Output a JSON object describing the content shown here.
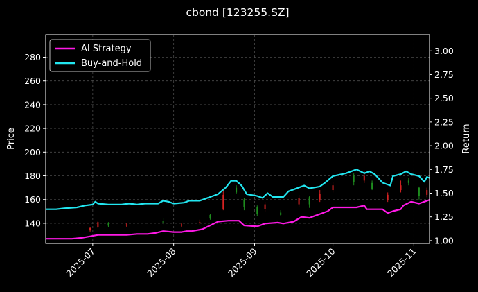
{
  "chart_data": {
    "type": "line",
    "title": "cbond [123255.SZ]",
    "ylabel_left": "Price",
    "ylabel_right": "Return",
    "x_ticks": [
      "2025-07",
      "2025-08",
      "2025-09",
      "2025-10",
      "2025-11"
    ],
    "y_left_ticks": [
      140,
      160,
      180,
      200,
      220,
      240,
      260,
      280
    ],
    "y_right_ticks": [
      "1.00",
      "1.25",
      "1.50",
      "1.75",
      "2.00",
      "2.25",
      "2.50",
      "2.75",
      "3.00"
    ],
    "y_left_lim": [
      123,
      299
    ],
    "y_right_lim": [
      0.97,
      3.17
    ],
    "x_lim": [
      "2025-06-13",
      "2025-11-07"
    ],
    "grid": true,
    "legend_position": "top-left",
    "colors": {
      "background": "#000000",
      "ai_strategy": "#ff19e6",
      "buy_and_hold": "#22e6f0",
      "candle_up": "#d62222",
      "candle_down": "#1e8c1e",
      "grid": "#4a4a4a"
    },
    "series": [
      {
        "name": "AI Strategy",
        "axis": "right",
        "points": [
          [
            "2025-06-13",
            1.02
          ],
          [
            "2025-06-23",
            1.02
          ],
          [
            "2025-06-27",
            1.03
          ],
          [
            "2025-07-01",
            1.05
          ],
          [
            "2025-07-03",
            1.06
          ],
          [
            "2025-07-08",
            1.06
          ],
          [
            "2025-07-14",
            1.06
          ],
          [
            "2025-07-18",
            1.07
          ],
          [
            "2025-07-22",
            1.07
          ],
          [
            "2025-07-25",
            1.08
          ],
          [
            "2025-07-28",
            1.1
          ],
          [
            "2025-08-01",
            1.09
          ],
          [
            "2025-08-04",
            1.09
          ],
          [
            "2025-08-06",
            1.1
          ],
          [
            "2025-08-08",
            1.1
          ],
          [
            "2025-08-12",
            1.12
          ],
          [
            "2025-08-15",
            1.16
          ],
          [
            "2025-08-18",
            1.2
          ],
          [
            "2025-08-22",
            1.21
          ],
          [
            "2025-08-26",
            1.21
          ],
          [
            "2025-08-28",
            1.16
          ],
          [
            "2025-09-02",
            1.15
          ],
          [
            "2025-09-05",
            1.18
          ],
          [
            "2025-09-10",
            1.19
          ],
          [
            "2025-09-12",
            1.18
          ],
          [
            "2025-09-16",
            1.2
          ],
          [
            "2025-09-19",
            1.25
          ],
          [
            "2025-09-22",
            1.24
          ],
          [
            "2025-09-24",
            1.26
          ],
          [
            "2025-09-26",
            1.28
          ],
          [
            "2025-09-29",
            1.31
          ],
          [
            "2025-10-01",
            1.35
          ],
          [
            "2025-10-10",
            1.35
          ],
          [
            "2025-10-13",
            1.37
          ],
          [
            "2025-10-14",
            1.33
          ],
          [
            "2025-10-20",
            1.33
          ],
          [
            "2025-10-22",
            1.29
          ],
          [
            "2025-10-24",
            1.31
          ],
          [
            "2025-10-27",
            1.33
          ],
          [
            "2025-10-28",
            1.37
          ],
          [
            "2025-10-31",
            1.41
          ],
          [
            "2025-11-03",
            1.39
          ],
          [
            "2025-11-05",
            1.41
          ],
          [
            "2025-11-07",
            1.43
          ]
        ]
      },
      {
        "name": "Buy-and-Hold",
        "axis": "right",
        "points": [
          [
            "2025-06-13",
            1.33
          ],
          [
            "2025-06-17",
            1.33
          ],
          [
            "2025-06-20",
            1.34
          ],
          [
            "2025-06-25",
            1.35
          ],
          [
            "2025-06-28",
            1.37
          ],
          [
            "2025-07-01",
            1.38
          ],
          [
            "2025-07-02",
            1.41
          ],
          [
            "2025-07-03",
            1.39
          ],
          [
            "2025-07-07",
            1.38
          ],
          [
            "2025-07-12",
            1.38
          ],
          [
            "2025-07-15",
            1.39
          ],
          [
            "2025-07-18",
            1.38
          ],
          [
            "2025-07-21",
            1.39
          ],
          [
            "2025-07-26",
            1.39
          ],
          [
            "2025-07-28",
            1.42
          ],
          [
            "2025-07-30",
            1.41
          ],
          [
            "2025-08-01",
            1.39
          ],
          [
            "2025-08-05",
            1.4
          ],
          [
            "2025-08-07",
            1.42
          ],
          [
            "2025-08-11",
            1.42
          ],
          [
            "2025-08-13",
            1.44
          ],
          [
            "2025-08-15",
            1.46
          ],
          [
            "2025-08-18",
            1.49
          ],
          [
            "2025-08-21",
            1.56
          ],
          [
            "2025-08-23",
            1.63
          ],
          [
            "2025-08-25",
            1.63
          ],
          [
            "2025-08-27",
            1.58
          ],
          [
            "2025-08-29",
            1.49
          ],
          [
            "2025-09-02",
            1.47
          ],
          [
            "2025-09-04",
            1.45
          ],
          [
            "2025-09-06",
            1.5
          ],
          [
            "2025-09-08",
            1.46
          ],
          [
            "2025-09-12",
            1.46
          ],
          [
            "2025-09-14",
            1.52
          ],
          [
            "2025-09-18",
            1.56
          ],
          [
            "2025-09-20",
            1.58
          ],
          [
            "2025-09-22",
            1.55
          ],
          [
            "2025-09-26",
            1.57
          ],
          [
            "2025-09-28",
            1.61
          ],
          [
            "2025-10-01",
            1.68
          ],
          [
            "2025-10-06",
            1.71
          ],
          [
            "2025-10-10",
            1.75
          ],
          [
            "2025-10-13",
            1.71
          ],
          [
            "2025-10-15",
            1.73
          ],
          [
            "2025-10-17",
            1.7
          ],
          [
            "2025-10-20",
            1.61
          ],
          [
            "2025-10-23",
            1.58
          ],
          [
            "2025-10-24",
            1.68
          ],
          [
            "2025-10-27",
            1.7
          ],
          [
            "2025-10-29",
            1.73
          ],
          [
            "2025-10-31",
            1.7
          ],
          [
            "2025-11-03",
            1.68
          ],
          [
            "2025-11-05",
            1.62
          ],
          [
            "2025-11-06",
            1.67
          ],
          [
            "2025-11-07",
            1.66
          ]
        ]
      }
    ],
    "candles_price_axis": [
      [
        "2025-06-30",
        134,
        136,
        133,
        137,
        "up"
      ],
      [
        "2025-07-03",
        137,
        141,
        136,
        142,
        "up"
      ],
      [
        "2025-07-07",
        140,
        138,
        137,
        141,
        "down"
      ],
      [
        "2025-07-14",
        138,
        139,
        137,
        140,
        "up"
      ],
      [
        "2025-07-28",
        142,
        140,
        139,
        144,
        "down"
      ],
      [
        "2025-08-04",
        138,
        139,
        137,
        140,
        "up"
      ],
      [
        "2025-08-11",
        140,
        141,
        139,
        143,
        "up"
      ],
      [
        "2025-08-15",
        147,
        144,
        143,
        148,
        "down"
      ],
      [
        "2025-08-20",
        152,
        164,
        151,
        168,
        "up"
      ],
      [
        "2025-08-25",
        170,
        166,
        165,
        172,
        "down"
      ],
      [
        "2025-08-28",
        160,
        154,
        151,
        161,
        "down"
      ],
      [
        "2025-09-02",
        154,
        148,
        146,
        155,
        "down"
      ],
      [
        "2025-09-05",
        152,
        156,
        150,
        158,
        "up"
      ],
      [
        "2025-09-11",
        149,
        147,
        146,
        151,
        "down"
      ],
      [
        "2025-09-18",
        156,
        161,
        154,
        164,
        "up"
      ],
      [
        "2025-09-22",
        162,
        156,
        153,
        163,
        "down"
      ],
      [
        "2025-09-26",
        160,
        165,
        158,
        168,
        "up"
      ],
      [
        "2025-10-01",
        168,
        172,
        166,
        175,
        "up"
      ],
      [
        "2025-10-09",
        180,
        175,
        172,
        182,
        "down"
      ],
      [
        "2025-10-13",
        176,
        180,
        174,
        184,
        "up"
      ],
      [
        "2025-10-16",
        174,
        169,
        168,
        176,
        "down"
      ],
      [
        "2025-10-22",
        160,
        164,
        158,
        166,
        "up"
      ],
      [
        "2025-10-27",
        168,
        172,
        166,
        176,
        "up"
      ],
      [
        "2025-10-30",
        176,
        174,
        172,
        178,
        "down"
      ],
      [
        "2025-11-03",
        170,
        163,
        160,
        171,
        "down"
      ],
      [
        "2025-11-06",
        164,
        168,
        162,
        170,
        "up"
      ]
    ]
  }
}
